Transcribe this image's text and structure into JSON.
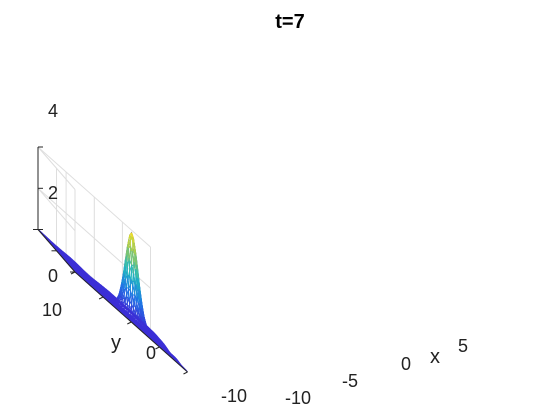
{
  "chart_data": {
    "type": "surface",
    "title": "t=7",
    "xlabel": "x",
    "ylabel": "y",
    "zlabel": "",
    "xlim": [
      -10,
      10
    ],
    "ylim": [
      -10,
      10
    ],
    "zlim": [
      0,
      4
    ],
    "xticks": [
      "-10",
      "-5",
      "0",
      "5"
    ],
    "yticks": [
      "-10",
      "0",
      "10"
    ],
    "zticks": [
      "0",
      "2",
      "4"
    ],
    "grid": true,
    "colormap": "parula",
    "colors": {
      "low": "#3d2fd6",
      "mid": "#1fb9c0",
      "high": "#f5e21e"
    },
    "peak": {
      "x": 5,
      "y": 5,
      "z": 4
    }
  }
}
